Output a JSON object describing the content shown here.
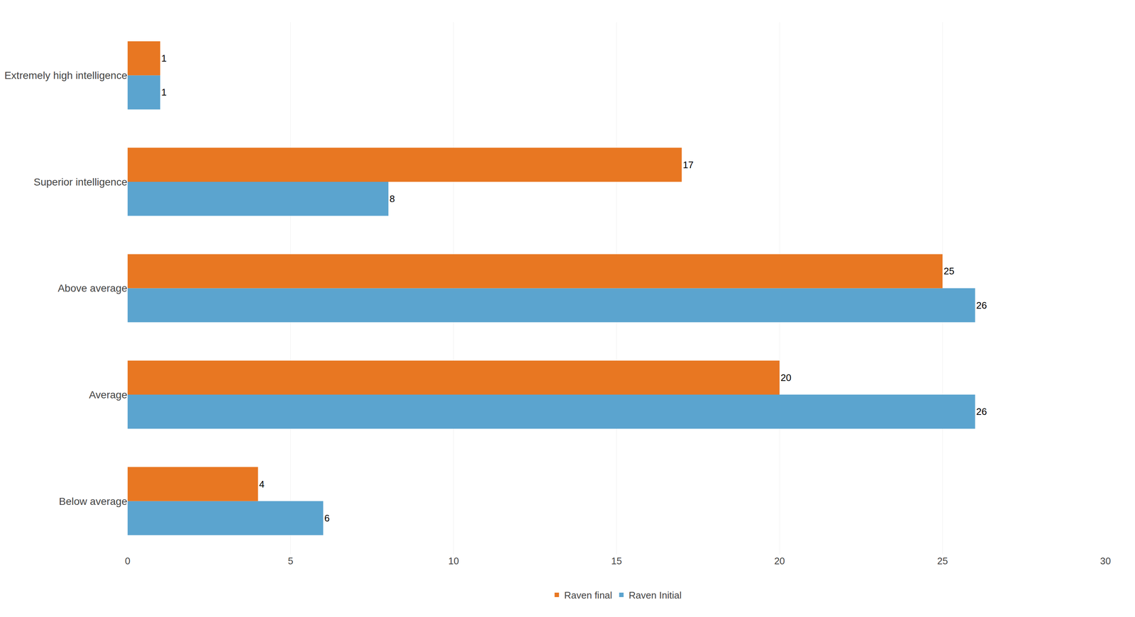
{
  "chart_data": {
    "type": "bar",
    "orientation": "horizontal",
    "categories": [
      "Below average",
      "Average",
      "Above average",
      "Superior intelligence",
      "Extremely high intelligence"
    ],
    "series": [
      {
        "name": "Raven final",
        "color": "#E87722",
        "values": [
          4,
          20,
          25,
          17,
          1
        ]
      },
      {
        "name": "Raven Initial",
        "color": "#5BA4CF",
        "values": [
          6,
          26,
          26,
          8,
          1
        ]
      }
    ],
    "xlim": [
      0,
      30
    ],
    "xticks": [
      0,
      5,
      10,
      15,
      20,
      25,
      30
    ],
    "grid": true,
    "legend": "bottom",
    "data_labels": true
  }
}
